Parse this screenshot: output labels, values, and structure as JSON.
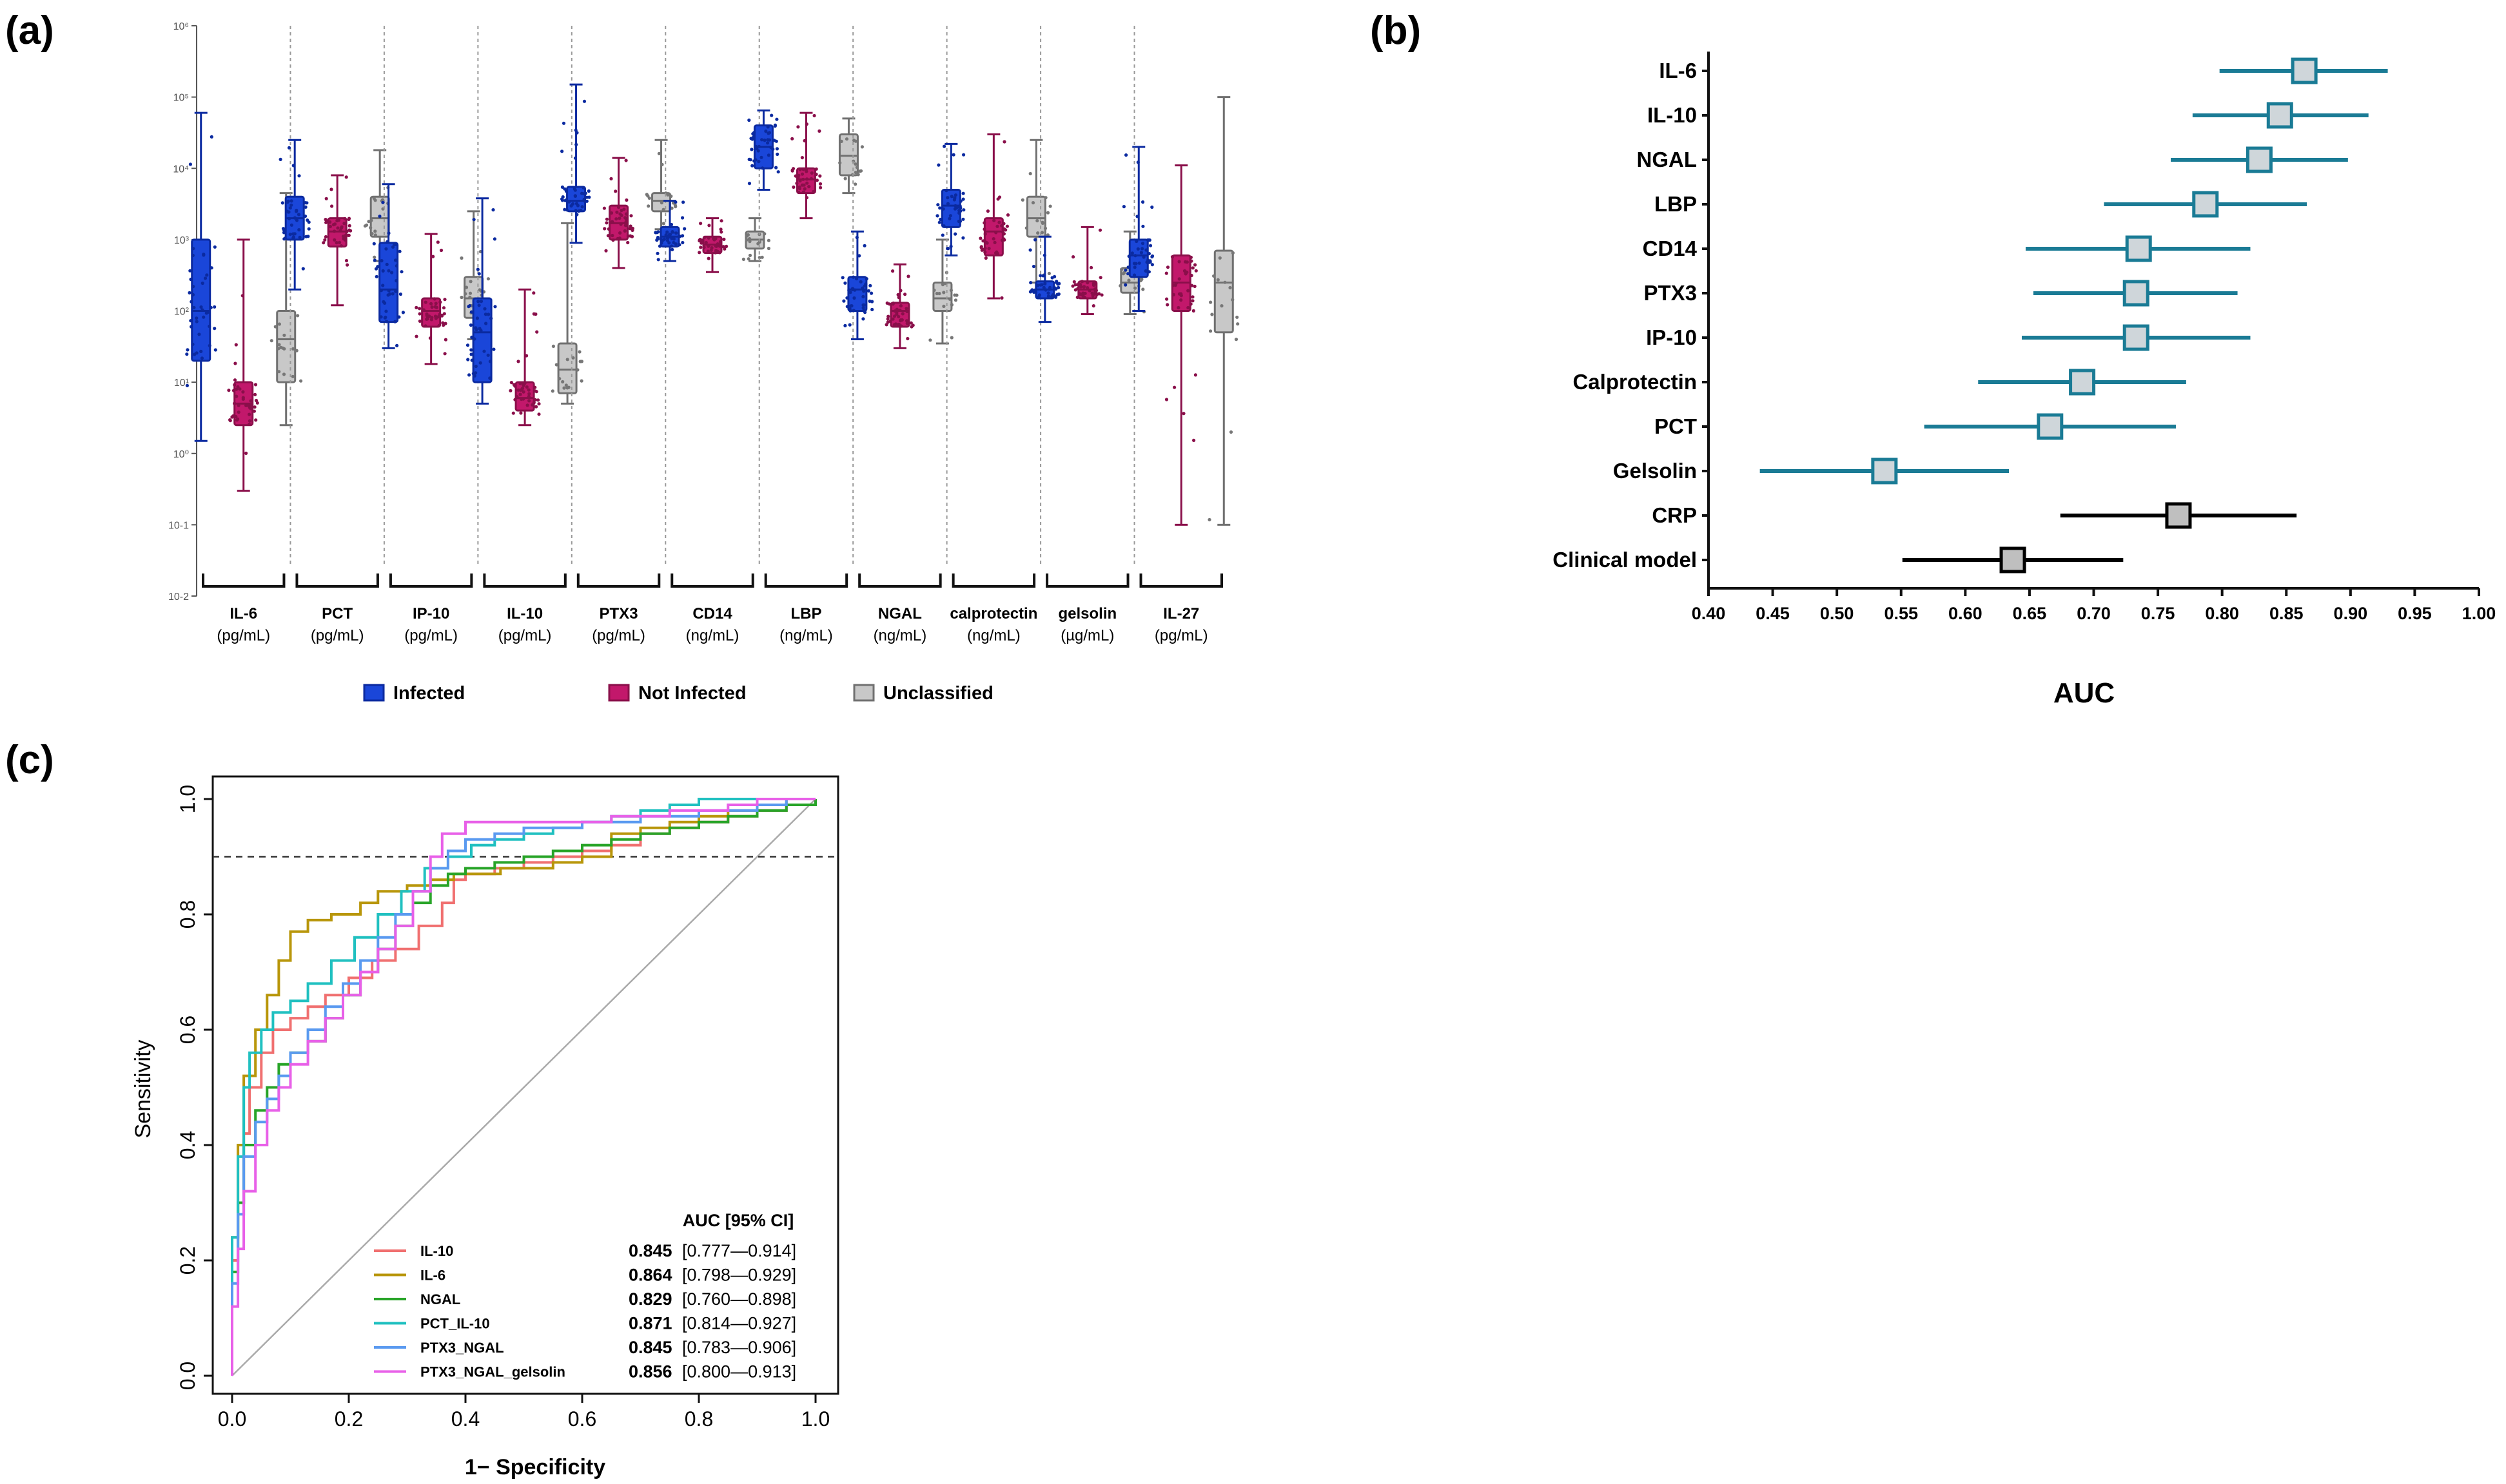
{
  "panels": {
    "a": {
      "label": "(a)"
    },
    "b": {
      "label": "(b)"
    },
    "c": {
      "label": "(c)"
    }
  },
  "chart_data": [
    {
      "id": "a",
      "type": "box",
      "yscale": "log10",
      "ylim": [
        0.01,
        1000000
      ],
      "y_tick_labels": [
        "10-2",
        "10-1",
        "10⁰",
        "10¹",
        "10²",
        "10³",
        "10⁴",
        "10⁵",
        "10⁶"
      ],
      "legend": [
        {
          "name": "Infected",
          "color": "#1a46d9"
        },
        {
          "name": "Not Infected",
          "color": "#c2186b"
        },
        {
          "name": "Unclassified",
          "color": "#c8c8c8"
        }
      ],
      "groups": [
        {
          "name": "IL-6",
          "unit": "(pg/mL)",
          "boxes": [
            {
              "series": "Infected",
              "min": 1.5,
              "q1": 20,
              "median": 100,
              "q3": 1000,
              "max": 60000
            },
            {
              "series": "Not Infected",
              "min": 0.3,
              "q1": 2.5,
              "median": 5,
              "q3": 10,
              "max": 1000
            },
            {
              "series": "Unclassified",
              "min": 2.5,
              "q1": 10,
              "median": 40,
              "q3": 100,
              "max": 4500
            }
          ]
        },
        {
          "name": "PCT",
          "unit": "(pg/mL)",
          "boxes": [
            {
              "series": "Infected",
              "min": 200,
              "q1": 1000,
              "median": 2000,
              "q3": 4000,
              "max": 25000
            },
            {
              "series": "Not Infected",
              "min": 120,
              "q1": 800,
              "median": 1300,
              "q3": 2000,
              "max": 8000
            },
            {
              "series": "Unclassified",
              "min": 500,
              "q1": 1100,
              "median": 2000,
              "q3": 4000,
              "max": 18000
            }
          ]
        },
        {
          "name": "IP-10",
          "unit": "(pg/mL)",
          "boxes": [
            {
              "series": "Infected",
              "min": 30,
              "q1": 70,
              "median": 200,
              "q3": 900,
              "max": 6000
            },
            {
              "series": "Not Infected",
              "min": 18,
              "q1": 60,
              "median": 100,
              "q3": 150,
              "max": 1200
            },
            {
              "series": "Unclassified",
              "min": 40,
              "q1": 80,
              "median": 150,
              "q3": 300,
              "max": 2500
            }
          ]
        },
        {
          "name": "IL-10",
          "unit": "(pg/mL)",
          "boxes": [
            {
              "series": "Infected",
              "min": 5,
              "q1": 10,
              "median": 50,
              "q3": 150,
              "max": 3800
            },
            {
              "series": "Not Infected",
              "min": 2.5,
              "q1": 4,
              "median": 6,
              "q3": 10,
              "max": 200
            },
            {
              "series": "Unclassified",
              "min": 5,
              "q1": 7,
              "median": 15,
              "q3": 35,
              "max": 1700
            }
          ]
        },
        {
          "name": "PTX3",
          "unit": "(pg/mL)",
          "boxes": [
            {
              "series": "Infected",
              "min": 900,
              "q1": 2500,
              "median": 3500,
              "q3": 5500,
              "max": 150000
            },
            {
              "series": "Not Infected",
              "min": 400,
              "q1": 1000,
              "median": 1700,
              "q3": 3000,
              "max": 14000
            },
            {
              "series": "Unclassified",
              "min": 1400,
              "q1": 2500,
              "median": 3500,
              "q3": 4500,
              "max": 25000
            }
          ]
        },
        {
          "name": "CD14",
          "unit": "(ng/mL)",
          "boxes": [
            {
              "series": "Infected",
              "min": 500,
              "q1": 800,
              "median": 1100,
              "q3": 1500,
              "max": 3500
            },
            {
              "series": "Not Infected",
              "min": 350,
              "q1": 650,
              "median": 850,
              "q3": 1100,
              "max": 2000
            },
            {
              "series": "Unclassified",
              "min": 500,
              "q1": 750,
              "median": 1000,
              "q3": 1300,
              "max": 2000
            }
          ]
        },
        {
          "name": "LBP",
          "unit": "(ng/mL)",
          "boxes": [
            {
              "series": "Infected",
              "min": 5000,
              "q1": 10000,
              "median": 20000,
              "q3": 40000,
              "max": 65000
            },
            {
              "series": "Not Infected",
              "min": 2000,
              "q1": 4500,
              "median": 7000,
              "q3": 10000,
              "max": 60000
            },
            {
              "series": "Unclassified",
              "min": 4500,
              "q1": 8000,
              "median": 15000,
              "q3": 30000,
              "max": 50000
            }
          ]
        },
        {
          "name": "NGAL",
          "unit": "(ng/mL)",
          "boxes": [
            {
              "series": "Infected",
              "min": 40,
              "q1": 100,
              "median": 200,
              "q3": 300,
              "max": 1300
            },
            {
              "series": "Not Infected",
              "min": 30,
              "q1": 60,
              "median": 100,
              "q3": 130,
              "max": 450
            },
            {
              "series": "Unclassified",
              "min": 35,
              "q1": 100,
              "median": 150,
              "q3": 250,
              "max": 1000
            }
          ]
        },
        {
          "name": "calprotectin",
          "unit": "(ng/mL)",
          "boxes": [
            {
              "series": "Infected",
              "min": 600,
              "q1": 1500,
              "median": 3000,
              "q3": 5000,
              "max": 22000
            },
            {
              "series": "Not Infected",
              "min": 150,
              "q1": 600,
              "median": 1300,
              "q3": 2000,
              "max": 30000
            },
            {
              "series": "Unclassified",
              "min": 250,
              "q1": 1100,
              "median": 2000,
              "q3": 4000,
              "max": 25000
            }
          ]
        },
        {
          "name": "gelsolin",
          "unit": "(µg/mL)",
          "boxes": [
            {
              "series": "Infected",
              "min": 70,
              "q1": 150,
              "median": 200,
              "q3": 260,
              "max": 1100
            },
            {
              "series": "Not Infected",
              "min": 90,
              "q1": 150,
              "median": 200,
              "q3": 260,
              "max": 1500
            },
            {
              "series": "Unclassified",
              "min": 90,
              "q1": 180,
              "median": 250,
              "q3": 400,
              "max": 1300
            }
          ]
        },
        {
          "name": "IL-27",
          "unit": "(pg/mL)",
          "boxes": [
            {
              "series": "Infected",
              "min": 100,
              "q1": 300,
              "median": 600,
              "q3": 1000,
              "max": 20000
            },
            {
              "series": "Not Infected",
              "min": 0.1,
              "q1": 100,
              "median": 250,
              "q3": 600,
              "max": 11000
            },
            {
              "series": "Unclassified",
              "min": 0.1,
              "q1": 50,
              "median": 250,
              "q3": 700,
              "max": 100000
            }
          ]
        }
      ]
    },
    {
      "id": "b",
      "type": "forest",
      "xlabel": "AUC",
      "xlim": [
        0.4,
        1.0
      ],
      "x_ticks": [
        "0.40",
        "0.45",
        "0.50",
        "0.55",
        "0.60",
        "0.65",
        "0.70",
        "0.75",
        "0.80",
        "0.85",
        "0.90",
        "0.95",
        "1.00"
      ],
      "rows": [
        {
          "label": "IL-6",
          "auc": 0.864,
          "lo": 0.798,
          "hi": 0.929,
          "color": "#1a7b95"
        },
        {
          "label": "IL-10",
          "auc": 0.845,
          "lo": 0.777,
          "hi": 0.914,
          "color": "#1a7b95"
        },
        {
          "label": "NGAL",
          "auc": 0.829,
          "lo": 0.76,
          "hi": 0.898,
          "color": "#1a7b95"
        },
        {
          "label": "LBP",
          "auc": 0.787,
          "lo": 0.708,
          "hi": 0.866,
          "color": "#1a7b95"
        },
        {
          "label": "CD14",
          "auc": 0.735,
          "lo": 0.647,
          "hi": 0.822,
          "color": "#1a7b95"
        },
        {
          "label": "PTX3",
          "auc": 0.733,
          "lo": 0.653,
          "hi": 0.812,
          "color": "#1a7b95"
        },
        {
          "label": "IP-10",
          "auc": 0.733,
          "lo": 0.644,
          "hi": 0.822,
          "color": "#1a7b95"
        },
        {
          "label": "Calprotectin",
          "auc": 0.691,
          "lo": 0.61,
          "hi": 0.772,
          "color": "#1a7b95"
        },
        {
          "label": "PCT",
          "auc": 0.666,
          "lo": 0.568,
          "hi": 0.764,
          "color": "#1a7b95"
        },
        {
          "label": "Gelsolin",
          "auc": 0.537,
          "lo": 0.44,
          "hi": 0.634,
          "color": "#1a7b95"
        },
        {
          "label": "CRP",
          "auc": 0.766,
          "lo": 0.674,
          "hi": 0.858,
          "color": "#000000"
        },
        {
          "label": "Clinical model",
          "auc": 0.637,
          "lo": 0.551,
          "hi": 0.723,
          "color": "#000000"
        }
      ]
    },
    {
      "id": "c",
      "type": "line",
      "title": "",
      "xlabel": "1− Specificity",
      "ylabel": "Sensitivity",
      "xlim": [
        0,
        1
      ],
      "ylim": [
        0,
        1
      ],
      "x_ticks": [
        "0.0",
        "0.2",
        "0.4",
        "0.6",
        "0.8",
        "1.0"
      ],
      "y_ticks": [
        "0.0",
        "0.2",
        "0.4",
        "0.6",
        "0.8",
        "1.0"
      ],
      "reference_line": 0.9,
      "legend_header": "AUC [95% CI]",
      "series": [
        {
          "name": "IL-10",
          "auc": "0.845",
          "ci": "[0.777—0.914]",
          "color": "#f07070",
          "x": [
            0,
            0,
            0.01,
            0.02,
            0.03,
            0.05,
            0.07,
            0.1,
            0.13,
            0.16,
            0.2,
            0.24,
            0.28,
            0.32,
            0.36,
            0.38,
            0.4,
            0.45,
            0.5,
            0.55,
            0.6,
            0.65,
            0.7,
            0.75,
            0.8,
            0.85,
            0.9,
            0.95,
            1
          ],
          "y": [
            0,
            0.2,
            0.3,
            0.42,
            0.5,
            0.56,
            0.6,
            0.62,
            0.64,
            0.66,
            0.69,
            0.72,
            0.74,
            0.78,
            0.82,
            0.86,
            0.87,
            0.88,
            0.89,
            0.9,
            0.91,
            0.92,
            0.94,
            0.95,
            0.96,
            0.97,
            0.98,
            0.99,
            1
          ]
        },
        {
          "name": "IL-6",
          "auc": "0.864",
          "ci": "[0.798—0.929]",
          "color": "#b8960a",
          "x": [
            0,
            0,
            0.01,
            0.02,
            0.04,
            0.06,
            0.08,
            0.1,
            0.13,
            0.17,
            0.22,
            0.25,
            0.3,
            0.34,
            0.38,
            0.42,
            0.46,
            0.5,
            0.55,
            0.6,
            0.65,
            0.7,
            0.75,
            0.8,
            0.85,
            0.9,
            0.95,
            1
          ],
          "y": [
            0,
            0.24,
            0.4,
            0.52,
            0.6,
            0.66,
            0.72,
            0.77,
            0.79,
            0.8,
            0.82,
            0.84,
            0.85,
            0.86,
            0.87,
            0.87,
            0.88,
            0.88,
            0.89,
            0.9,
            0.94,
            0.95,
            0.96,
            0.97,
            0.98,
            0.99,
            1,
            1
          ]
        },
        {
          "name": "NGAL",
          "auc": "0.829",
          "ci": "[0.760—0.898]",
          "color": "#28a428",
          "x": [
            0,
            0,
            0.01,
            0.02,
            0.04,
            0.06,
            0.08,
            0.1,
            0.13,
            0.16,
            0.19,
            0.22,
            0.25,
            0.28,
            0.31,
            0.34,
            0.37,
            0.4,
            0.45,
            0.5,
            0.55,
            0.6,
            0.65,
            0.7,
            0.75,
            0.8,
            0.85,
            0.9,
            0.95,
            1
          ],
          "y": [
            0,
            0.18,
            0.3,
            0.4,
            0.46,
            0.5,
            0.54,
            0.56,
            0.58,
            0.62,
            0.66,
            0.7,
            0.74,
            0.78,
            0.82,
            0.85,
            0.87,
            0.88,
            0.89,
            0.9,
            0.91,
            0.92,
            0.93,
            0.94,
            0.95,
            0.96,
            0.97,
            0.98,
            0.99,
            1
          ]
        },
        {
          "name": "PCT_IL-10",
          "auc": "0.871",
          "ci": "[0.814—0.927]",
          "color": "#20c0c0",
          "x": [
            0,
            0,
            0.01,
            0.02,
            0.03,
            0.05,
            0.07,
            0.1,
            0.13,
            0.17,
            0.21,
            0.25,
            0.29,
            0.33,
            0.37,
            0.41,
            0.45,
            0.5,
            0.55,
            0.6,
            0.65,
            0.7,
            0.75,
            0.8,
            0.85,
            0.9,
            0.95,
            1
          ],
          "y": [
            0,
            0.24,
            0.38,
            0.5,
            0.56,
            0.6,
            0.63,
            0.65,
            0.68,
            0.72,
            0.76,
            0.8,
            0.84,
            0.88,
            0.9,
            0.92,
            0.93,
            0.94,
            0.95,
            0.96,
            0.97,
            0.98,
            0.99,
            1,
            1,
            1,
            1,
            1
          ]
        },
        {
          "name": "PTX3_NGAL",
          "auc": "0.845",
          "ci": "[0.783—0.906]",
          "color": "#5a9af0",
          "x": [
            0,
            0,
            0.01,
            0.02,
            0.04,
            0.06,
            0.08,
            0.1,
            0.13,
            0.16,
            0.19,
            0.22,
            0.25,
            0.28,
            0.31,
            0.34,
            0.37,
            0.4,
            0.45,
            0.5,
            0.55,
            0.6,
            0.65,
            0.7,
            0.75,
            0.8,
            0.85,
            0.9,
            0.95,
            1
          ],
          "y": [
            0,
            0.16,
            0.28,
            0.38,
            0.44,
            0.48,
            0.52,
            0.56,
            0.6,
            0.64,
            0.68,
            0.72,
            0.76,
            0.8,
            0.84,
            0.88,
            0.91,
            0.93,
            0.94,
            0.95,
            0.95,
            0.96,
            0.96,
            0.97,
            0.97,
            0.98,
            0.98,
            0.99,
            1,
            1
          ]
        },
        {
          "name": "PTX3_NGAL_gelsolin",
          "auc": "0.856",
          "ci": "[0.800—0.913]",
          "color": "#e860e8",
          "x": [
            0,
            0,
            0.01,
            0.02,
            0.04,
            0.06,
            0.08,
            0.1,
            0.13,
            0.16,
            0.19,
            0.22,
            0.25,
            0.28,
            0.31,
            0.34,
            0.36,
            0.4,
            0.45,
            0.5,
            0.55,
            0.6,
            0.65,
            0.7,
            0.75,
            0.8,
            0.85,
            0.9,
            0.95,
            1
          ],
          "y": [
            0,
            0.12,
            0.22,
            0.32,
            0.4,
            0.46,
            0.5,
            0.54,
            0.58,
            0.62,
            0.66,
            0.7,
            0.74,
            0.78,
            0.84,
            0.9,
            0.94,
            0.96,
            0.96,
            0.96,
            0.96,
            0.96,
            0.97,
            0.97,
            0.98,
            0.98,
            0.99,
            1,
            1,
            1
          ]
        }
      ]
    }
  ]
}
